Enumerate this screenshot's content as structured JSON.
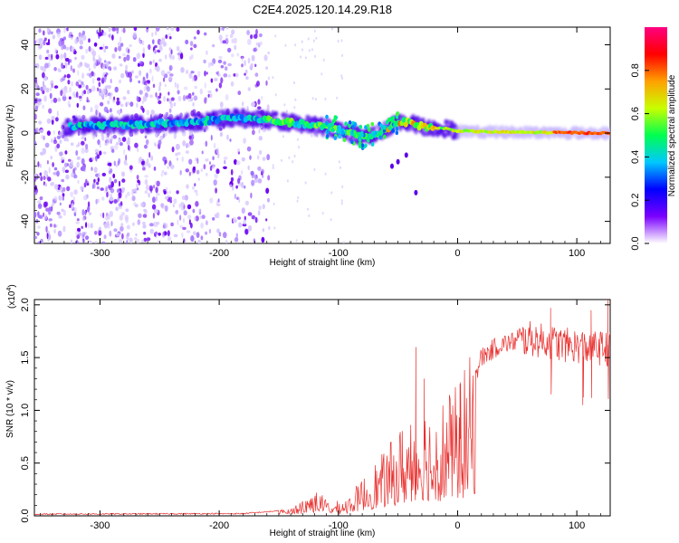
{
  "title": "C2E4.2025.120.14.29.R18",
  "chart_data": [
    {
      "type": "heatmap",
      "name": "spectrogram",
      "xlabel": "Height of straight line (km)",
      "ylabel": "Frequency (Hz)",
      "xlim": [
        -355,
        128
      ],
      "ylim": [
        -50,
        48
      ],
      "xticks": [
        -300,
        -200,
        -100,
        0,
        100
      ],
      "yticks": [
        -40,
        -20,
        0,
        20,
        40
      ],
      "colorbar": {
        "label": "Normalized spectral amplitude",
        "range": [
          0,
          1
        ],
        "ticks": [
          "0.0",
          "0.2",
          "0.4",
          "0.6",
          "0.8"
        ],
        "stops": [
          "#ffffff",
          "#7a00ff",
          "#0000ff",
          "#00c8ff",
          "#00ff50",
          "#c8ff00",
          "#ffa000",
          "#ff0000",
          "#ff0080"
        ]
      },
      "ridge": [
        {
          "x": -325,
          "y": 3
        },
        {
          "x": -300,
          "y": 3.5
        },
        {
          "x": -260,
          "y": 4
        },
        {
          "x": -220,
          "y": 5
        },
        {
          "x": -190,
          "y": 7
        },
        {
          "x": -160,
          "y": 6
        },
        {
          "x": -130,
          "y": 4
        },
        {
          "x": -100,
          "y": 2
        },
        {
          "x": -80,
          "y": -2
        },
        {
          "x": -65,
          "y": 0
        },
        {
          "x": -50,
          "y": 5
        },
        {
          "x": -40,
          "y": 5
        },
        {
          "x": -30,
          "y": 3
        },
        {
          "x": -10,
          "y": 2
        },
        {
          "x": 0,
          "y": 1
        },
        {
          "x": 30,
          "y": 0.5
        },
        {
          "x": 128,
          "y": 0
        }
      ],
      "isolated_points": [
        {
          "x": -43,
          "y": -10
        },
        {
          "x": -35,
          "y": -27
        },
        {
          "x": -55,
          "y": -15
        },
        {
          "x": -50,
          "y": -13
        }
      ]
    },
    {
      "type": "line",
      "name": "snr",
      "xlabel": "Height of straight line (km)",
      "ylabel": "SNR (10 * v/v)",
      "y_multiplier": "(x10",
      "y_exponent": "4",
      "xlim": [
        -355,
        128
      ],
      "ylim": [
        0,
        2.05
      ],
      "xticks": [
        -300,
        -200,
        -100,
        0,
        100
      ],
      "yticks": [
        "0.0",
        "0.5",
        "1.0",
        "1.5",
        "2.0"
      ],
      "color": "#e8312f",
      "envelope": [
        {
          "x": -355,
          "y": 0.01
        },
        {
          "x": -180,
          "y": 0.015
        },
        {
          "x": -140,
          "y": 0.05
        },
        {
          "x": -130,
          "y": 0.12
        },
        {
          "x": -120,
          "y": 0.2
        },
        {
          "x": -105,
          "y": 0.08
        },
        {
          "x": -90,
          "y": 0.15
        },
        {
          "x": -75,
          "y": 0.35
        },
        {
          "x": -60,
          "y": 0.5
        },
        {
          "x": -50,
          "y": 0.65
        },
        {
          "x": -40,
          "y": 0.8
        },
        {
          "x": -30,
          "y": 0.9
        },
        {
          "x": -20,
          "y": 0.85
        },
        {
          "x": -10,
          "y": 0.95
        },
        {
          "x": 0,
          "y": 1.0
        },
        {
          "x": 10,
          "y": 1.2
        },
        {
          "x": 20,
          "y": 1.5
        },
        {
          "x": 35,
          "y": 1.62
        },
        {
          "x": 60,
          "y": 1.68
        },
        {
          "x": 90,
          "y": 1.62
        },
        {
          "x": 128,
          "y": 1.58
        }
      ],
      "spikes": [
        {
          "x": -35,
          "y": 1.6
        },
        {
          "x": -28,
          "y": 1.3
        },
        {
          "x": 2,
          "y": 1.25
        },
        {
          "x": 78,
          "y": 1.97
        },
        {
          "x": 112,
          "y": 1.95
        },
        {
          "x": 126,
          "y": 2.05
        },
        {
          "x": 105,
          "y": 1.05
        }
      ]
    }
  ]
}
